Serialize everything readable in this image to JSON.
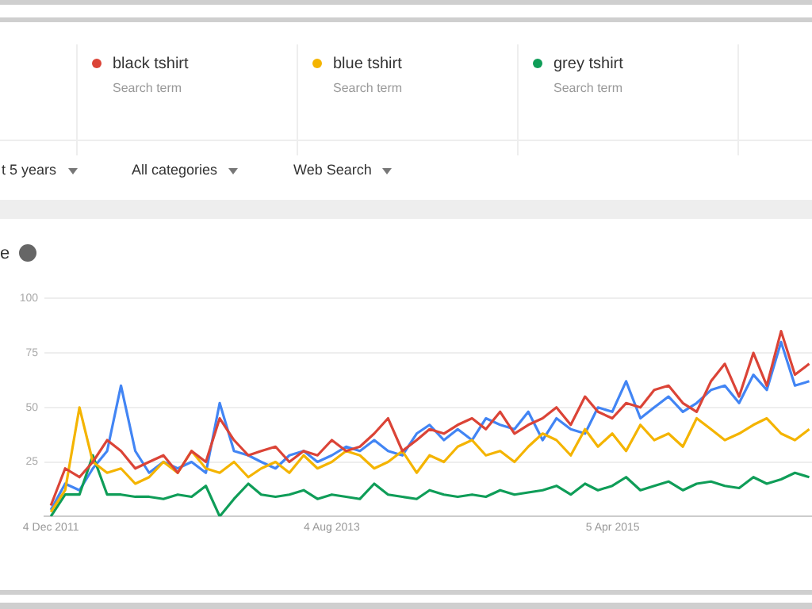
{
  "chart_data": {
    "type": "line",
    "title": "e",
    "x": [
      "2011-12-04",
      "2012-01-04",
      "2012-02-04",
      "2012-03-04",
      "2012-04-04",
      "2012-05-04",
      "2012-06-04",
      "2012-07-04",
      "2012-08-04",
      "2012-09-04",
      "2012-10-04",
      "2012-11-04",
      "2012-12-04",
      "2013-01-04",
      "2013-02-04",
      "2013-03-04",
      "2013-04-04",
      "2013-05-04",
      "2013-06-04",
      "2013-07-04",
      "2013-08-04",
      "2013-09-04",
      "2013-10-04",
      "2013-11-04",
      "2013-12-04",
      "2014-01-04",
      "2014-02-04",
      "2014-03-04",
      "2014-04-04",
      "2014-05-04",
      "2014-06-04",
      "2014-07-04",
      "2014-08-04",
      "2014-09-04",
      "2014-10-04",
      "2014-11-04",
      "2014-12-04",
      "2015-01-04",
      "2015-02-04",
      "2015-03-04",
      "2015-04-04",
      "2015-05-04",
      "2015-06-04",
      "2015-07-04",
      "2015-08-04",
      "2015-09-04",
      "2015-10-04",
      "2015-11-04",
      "2015-12-04",
      "2016-01-04",
      "2016-02-04",
      "2016-03-04",
      "2016-04-04",
      "2016-05-04",
      "2016-06-04"
    ],
    "series": [
      {
        "name": "black tshirt",
        "color": "#db4437",
        "values": [
          5,
          22,
          18,
          25,
          35,
          30,
          22,
          25,
          28,
          20,
          30,
          25,
          45,
          35,
          28,
          30,
          32,
          25,
          30,
          28,
          35,
          30,
          32,
          38,
          45,
          30,
          35,
          40,
          38,
          42,
          45,
          40,
          48,
          38,
          42,
          45,
          50,
          42,
          55,
          48,
          45,
          52,
          50,
          58,
          60,
          52,
          48,
          62,
          70,
          55,
          75,
          60,
          85,
          65,
          70
        ]
      },
      {
        "name": "blue tshirt",
        "color": "#f4b400",
        "values": [
          2,
          12,
          50,
          25,
          20,
          22,
          15,
          18,
          25,
          20,
          30,
          22,
          20,
          25,
          18,
          22,
          25,
          20,
          28,
          22,
          25,
          30,
          28,
          22,
          25,
          30,
          20,
          28,
          25,
          32,
          35,
          28,
          30,
          25,
          32,
          38,
          35,
          28,
          40,
          32,
          38,
          30,
          42,
          35,
          38,
          32,
          45,
          40,
          35,
          38,
          42,
          45,
          38,
          35,
          40
        ]
      },
      {
        "name": "grey tshirt",
        "color": "#0f9d58",
        "values": [
          0,
          10,
          10,
          28,
          10,
          10,
          9,
          9,
          8,
          10,
          9,
          14,
          0,
          8,
          15,
          10,
          9,
          10,
          12,
          8,
          10,
          9,
          8,
          15,
          10,
          9,
          8,
          12,
          10,
          9,
          10,
          9,
          12,
          10,
          11,
          12,
          14,
          10,
          15,
          12,
          14,
          18,
          12,
          14,
          16,
          12,
          15,
          16,
          14,
          13,
          18,
          15,
          17,
          20,
          18
        ]
      },
      {
        "color": "#4285f4",
        "values": [
          3,
          15,
          12,
          22,
          30,
          60,
          30,
          20,
          25,
          22,
          25,
          20,
          52,
          30,
          28,
          25,
          22,
          28,
          30,
          25,
          28,
          32,
          30,
          35,
          30,
          28,
          38,
          42,
          35,
          40,
          35,
          45,
          42,
          40,
          48,
          35,
          45,
          40,
          38,
          50,
          48,
          62,
          45,
          50,
          55,
          48,
          52,
          58,
          60,
          52,
          65,
          58,
          80,
          60,
          62
        ]
      }
    ],
    "xlim": [
      "2011-11-20",
      "2016-06-10"
    ],
    "xticks": [
      {
        "value": "2011-12-04",
        "label": "4 Dec 2011"
      },
      {
        "value": "2013-08-04",
        "label": "4 Aug 2013"
      },
      {
        "value": "2015-04-05",
        "label": "5 Apr 2015"
      }
    ],
    "ylim": [
      0,
      100
    ],
    "yticks": [
      {
        "value": 0,
        "label": null
      },
      25,
      50,
      75,
      100
    ],
    "grid": "y",
    "legend": "top",
    "marker": "none",
    "line_style": "solid",
    "annotations": [
      "Search term",
      "Search term",
      "Search term",
      "t 5 years",
      "All categories",
      "Web Search"
    ]
  }
}
